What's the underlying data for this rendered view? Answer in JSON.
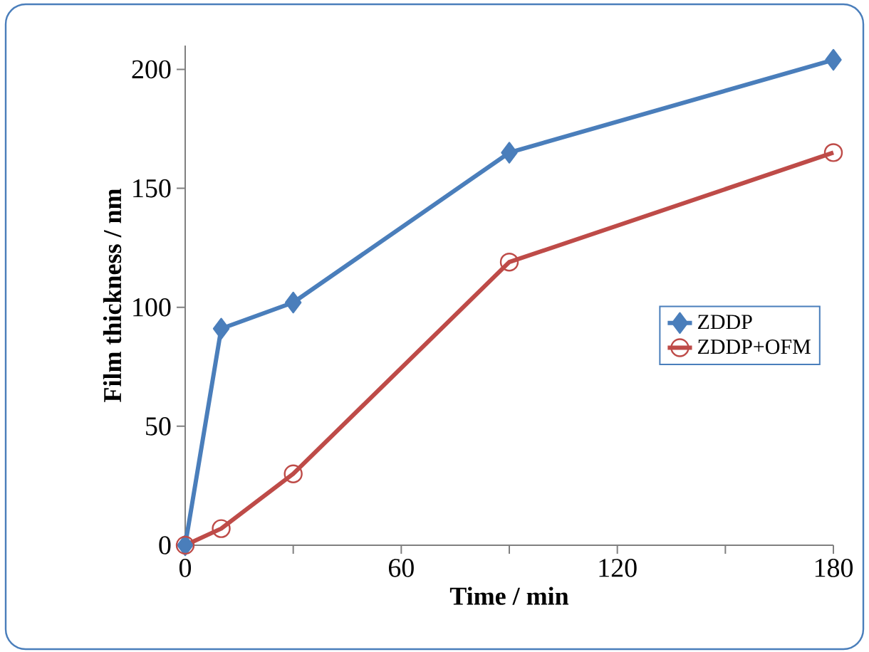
{
  "chart_data": {
    "type": "line",
    "xlabel": "Time / min",
    "ylabel": "Film thickness / nm",
    "x": [
      0,
      10,
      30,
      90,
      180
    ],
    "series": [
      {
        "name": "ZDDP",
        "color": "#4a7ebb",
        "marker": "diamond",
        "values": [
          0,
          91,
          102,
          165,
          204
        ]
      },
      {
        "name": "ZDDP+OFM",
        "color": "#be4b48",
        "marker": "circle",
        "values": [
          0,
          7,
          30,
          119,
          165
        ]
      }
    ],
    "xlim": [
      0,
      180
    ],
    "ylim": [
      0,
      210
    ],
    "xticks": [
      0,
      {
        "value": 30,
        "label": null
      },
      60,
      {
        "value": 90,
        "label": null
      },
      120,
      {
        "value": 150,
        "label": null
      },
      180
    ],
    "yticks": [
      0,
      50,
      100,
      150,
      200
    ],
    "grid": false,
    "legend": "right",
    "line_style": "solid"
  }
}
